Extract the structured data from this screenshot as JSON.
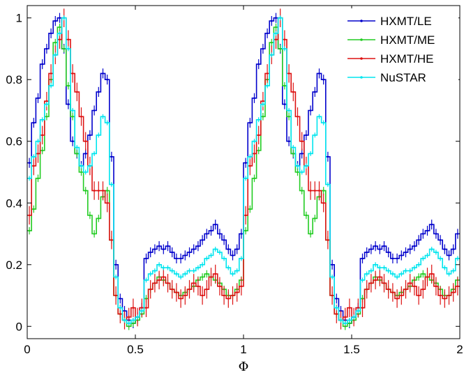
{
  "chart_data": {
    "type": "line",
    "title": "",
    "xlabel": "Φ",
    "ylabel": "",
    "xlim": [
      0,
      2
    ],
    "ylim": [
      -0.04,
      1.04
    ],
    "xticks": [
      "0",
      "0.5",
      "1",
      "1.5",
      "2"
    ],
    "yticks": [
      "0",
      "0.2",
      "0.4",
      "0.6",
      "0.8",
      "1"
    ],
    "legend_position": "top-right",
    "grid": false,
    "step_style": "staircase with error bars",
    "series": [
      {
        "name": "HXMT/LE",
        "color": "#0000cc",
        "x": [
          0.0,
          0.02,
          0.04,
          0.06,
          0.08,
          0.1,
          0.12,
          0.14,
          0.16,
          0.18,
          0.2,
          0.22,
          0.24,
          0.26,
          0.28,
          0.3,
          0.32,
          0.34,
          0.36,
          0.38,
          0.4,
          0.42,
          0.44,
          0.46,
          0.48,
          0.5,
          0.52,
          0.54,
          0.56,
          0.58,
          0.6,
          0.62,
          0.64,
          0.66,
          0.68,
          0.7,
          0.72,
          0.74,
          0.76,
          0.78,
          0.8,
          0.82,
          0.84,
          0.86,
          0.88,
          0.9,
          0.92,
          0.94,
          0.96,
          0.98
        ],
        "y": [
          0.53,
          0.66,
          0.74,
          0.85,
          0.9,
          0.95,
          0.99,
          1.0,
          0.9,
          0.72,
          0.6,
          0.56,
          0.52,
          0.56,
          0.62,
          0.7,
          0.76,
          0.82,
          0.8,
          0.55,
          0.2,
          0.09,
          0.05,
          0.02,
          0.01,
          0.03,
          0.06,
          0.22,
          0.24,
          0.25,
          0.26,
          0.25,
          0.26,
          0.24,
          0.22,
          0.22,
          0.23,
          0.24,
          0.25,
          0.26,
          0.28,
          0.3,
          0.31,
          0.33,
          0.3,
          0.28,
          0.25,
          0.23,
          0.25,
          0.3
        ],
        "err": 0.016
      },
      {
        "name": "HXMT/ME",
        "color": "#22cc22",
        "x": [
          0.0,
          0.02,
          0.04,
          0.06,
          0.08,
          0.1,
          0.12,
          0.14,
          0.16,
          0.18,
          0.2,
          0.22,
          0.24,
          0.26,
          0.28,
          0.3,
          0.32,
          0.34,
          0.36,
          0.38,
          0.4,
          0.42,
          0.44,
          0.46,
          0.48,
          0.5,
          0.52,
          0.54,
          0.56,
          0.58,
          0.6,
          0.62,
          0.64,
          0.66,
          0.68,
          0.7,
          0.72,
          0.74,
          0.76,
          0.78,
          0.8,
          0.82,
          0.84,
          0.86,
          0.88,
          0.9,
          0.92,
          0.94,
          0.96,
          0.98
        ],
        "y": [
          0.31,
          0.38,
          0.48,
          0.57,
          0.68,
          0.8,
          0.92,
          0.97,
          0.9,
          0.78,
          0.68,
          0.56,
          0.5,
          0.44,
          0.36,
          0.3,
          0.35,
          0.42,
          0.44,
          0.28,
          0.1,
          0.04,
          0.02,
          0.0,
          0.01,
          0.02,
          0.04,
          0.09,
          0.12,
          0.14,
          0.16,
          0.15,
          0.14,
          0.12,
          0.11,
          0.1,
          0.11,
          0.12,
          0.13,
          0.15,
          0.16,
          0.17,
          0.16,
          0.15,
          0.14,
          0.12,
          0.1,
          0.1,
          0.12,
          0.15
        ],
        "err": 0.012
      },
      {
        "name": "HXMT/HE",
        "color": "#dd1111",
        "x": [
          0.0,
          0.02,
          0.04,
          0.06,
          0.08,
          0.1,
          0.12,
          0.14,
          0.16,
          0.18,
          0.2,
          0.22,
          0.24,
          0.26,
          0.28,
          0.3,
          0.32,
          0.34,
          0.36,
          0.38,
          0.4,
          0.42,
          0.44,
          0.46,
          0.48,
          0.5,
          0.52,
          0.54,
          0.56,
          0.58,
          0.6,
          0.62,
          0.64,
          0.66,
          0.68,
          0.7,
          0.72,
          0.74,
          0.76,
          0.78,
          0.8,
          0.82,
          0.84,
          0.86,
          0.88,
          0.9,
          0.92,
          0.94,
          0.96,
          0.98
        ],
        "y": [
          0.36,
          0.52,
          0.56,
          0.62,
          0.73,
          0.82,
          0.88,
          0.93,
          1.0,
          0.93,
          0.82,
          0.76,
          0.68,
          0.6,
          0.52,
          0.44,
          0.44,
          0.44,
          0.4,
          0.28,
          0.1,
          0.04,
          0.02,
          0.03,
          0.06,
          0.03,
          0.06,
          0.06,
          0.12,
          0.14,
          0.15,
          0.16,
          0.14,
          0.12,
          0.11,
          0.09,
          0.1,
          0.12,
          0.14,
          0.13,
          0.1,
          0.12,
          0.16,
          0.17,
          0.13,
          0.1,
          0.09,
          0.1,
          0.11,
          0.13
        ],
        "err": 0.03
      },
      {
        "name": "NuSTAR",
        "color": "#00e5ee",
        "x": [
          0.0,
          0.02,
          0.04,
          0.06,
          0.08,
          0.1,
          0.12,
          0.14,
          0.16,
          0.18,
          0.2,
          0.22,
          0.24,
          0.26,
          0.28,
          0.3,
          0.32,
          0.34,
          0.36,
          0.38,
          0.4,
          0.42,
          0.44,
          0.46,
          0.48,
          0.5,
          0.52,
          0.54,
          0.56,
          0.58,
          0.6,
          0.62,
          0.64,
          0.66,
          0.68,
          0.7,
          0.72,
          0.74,
          0.76,
          0.78,
          0.8,
          0.82,
          0.84,
          0.86,
          0.88,
          0.9,
          0.92,
          0.94,
          0.96,
          0.98
        ],
        "y": [
          0.48,
          0.55,
          0.6,
          0.67,
          0.72,
          0.78,
          0.88,
          0.95,
          1.0,
          0.9,
          0.7,
          0.58,
          0.52,
          0.5,
          0.52,
          0.56,
          0.62,
          0.68,
          0.66,
          0.46,
          0.16,
          0.06,
          0.02,
          0.01,
          0.02,
          0.03,
          0.05,
          0.15,
          0.17,
          0.18,
          0.2,
          0.19,
          0.19,
          0.18,
          0.17,
          0.16,
          0.17,
          0.18,
          0.18,
          0.19,
          0.2,
          0.22,
          0.23,
          0.25,
          0.24,
          0.22,
          0.19,
          0.17,
          0.18,
          0.22
        ],
        "err": 0.008
      }
    ]
  }
}
